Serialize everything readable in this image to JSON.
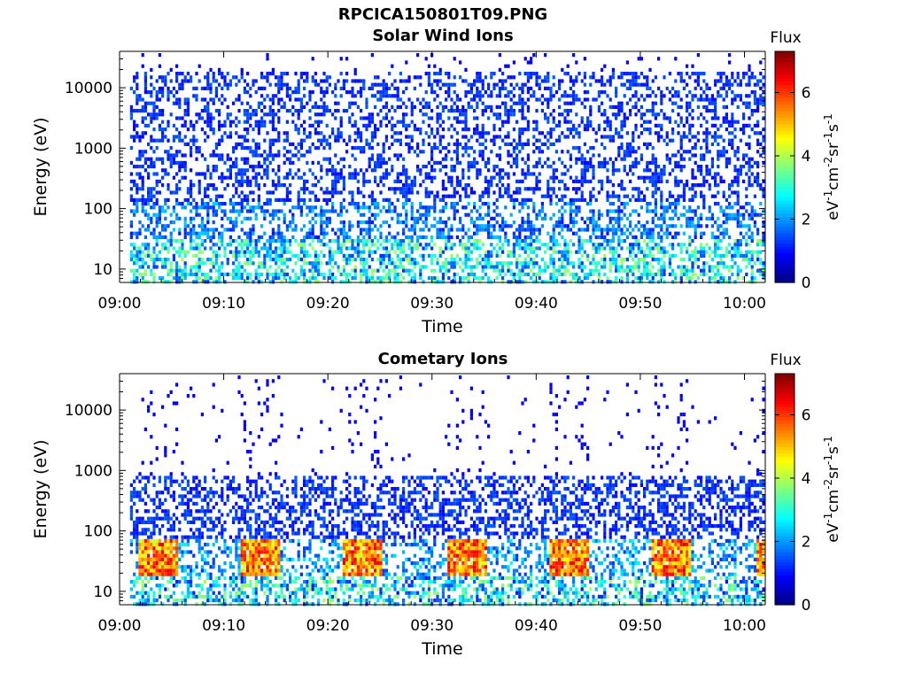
{
  "figure": {
    "title": "RPCICA150801T09.PNG"
  },
  "chart_data": [
    {
      "type": "heatmap",
      "title": "Solar Wind Ions",
      "xlabel": "Time",
      "ylabel": "Energy (eV)",
      "x_ticks": [
        "09:00",
        "09:10",
        "09:20",
        "09:30",
        "09:40",
        "09:50",
        "10:00"
      ],
      "x_range": [
        "09:00",
        "10:02"
      ],
      "y_scale": "log",
      "y_ticks": [
        10,
        100,
        1000,
        10000
      ],
      "y_range": [
        6,
        40000
      ],
      "colorbar": {
        "title": "Flux",
        "label": "eV-1cm-2sr-1s-1",
        "ticks": [
          0,
          2,
          4,
          6
        ],
        "range": [
          0,
          7.3
        ]
      }
    },
    {
      "type": "heatmap",
      "title": "Cometary Ions",
      "xlabel": "Time",
      "ylabel": "Energy (eV)",
      "x_ticks": [
        "09:00",
        "09:10",
        "09:20",
        "09:30",
        "09:40",
        "09:50",
        "10:00"
      ],
      "x_range": [
        "09:00",
        "10:02"
      ],
      "y_scale": "log",
      "y_ticks": [
        10,
        100,
        1000,
        10000
      ],
      "y_range": [
        6,
        40000
      ],
      "colorbar": {
        "title": "Flux",
        "label": "eV-1cm-2sr-1s-1",
        "ticks": [
          0,
          2,
          4,
          6
        ],
        "range": [
          0,
          7.3
        ]
      }
    }
  ]
}
